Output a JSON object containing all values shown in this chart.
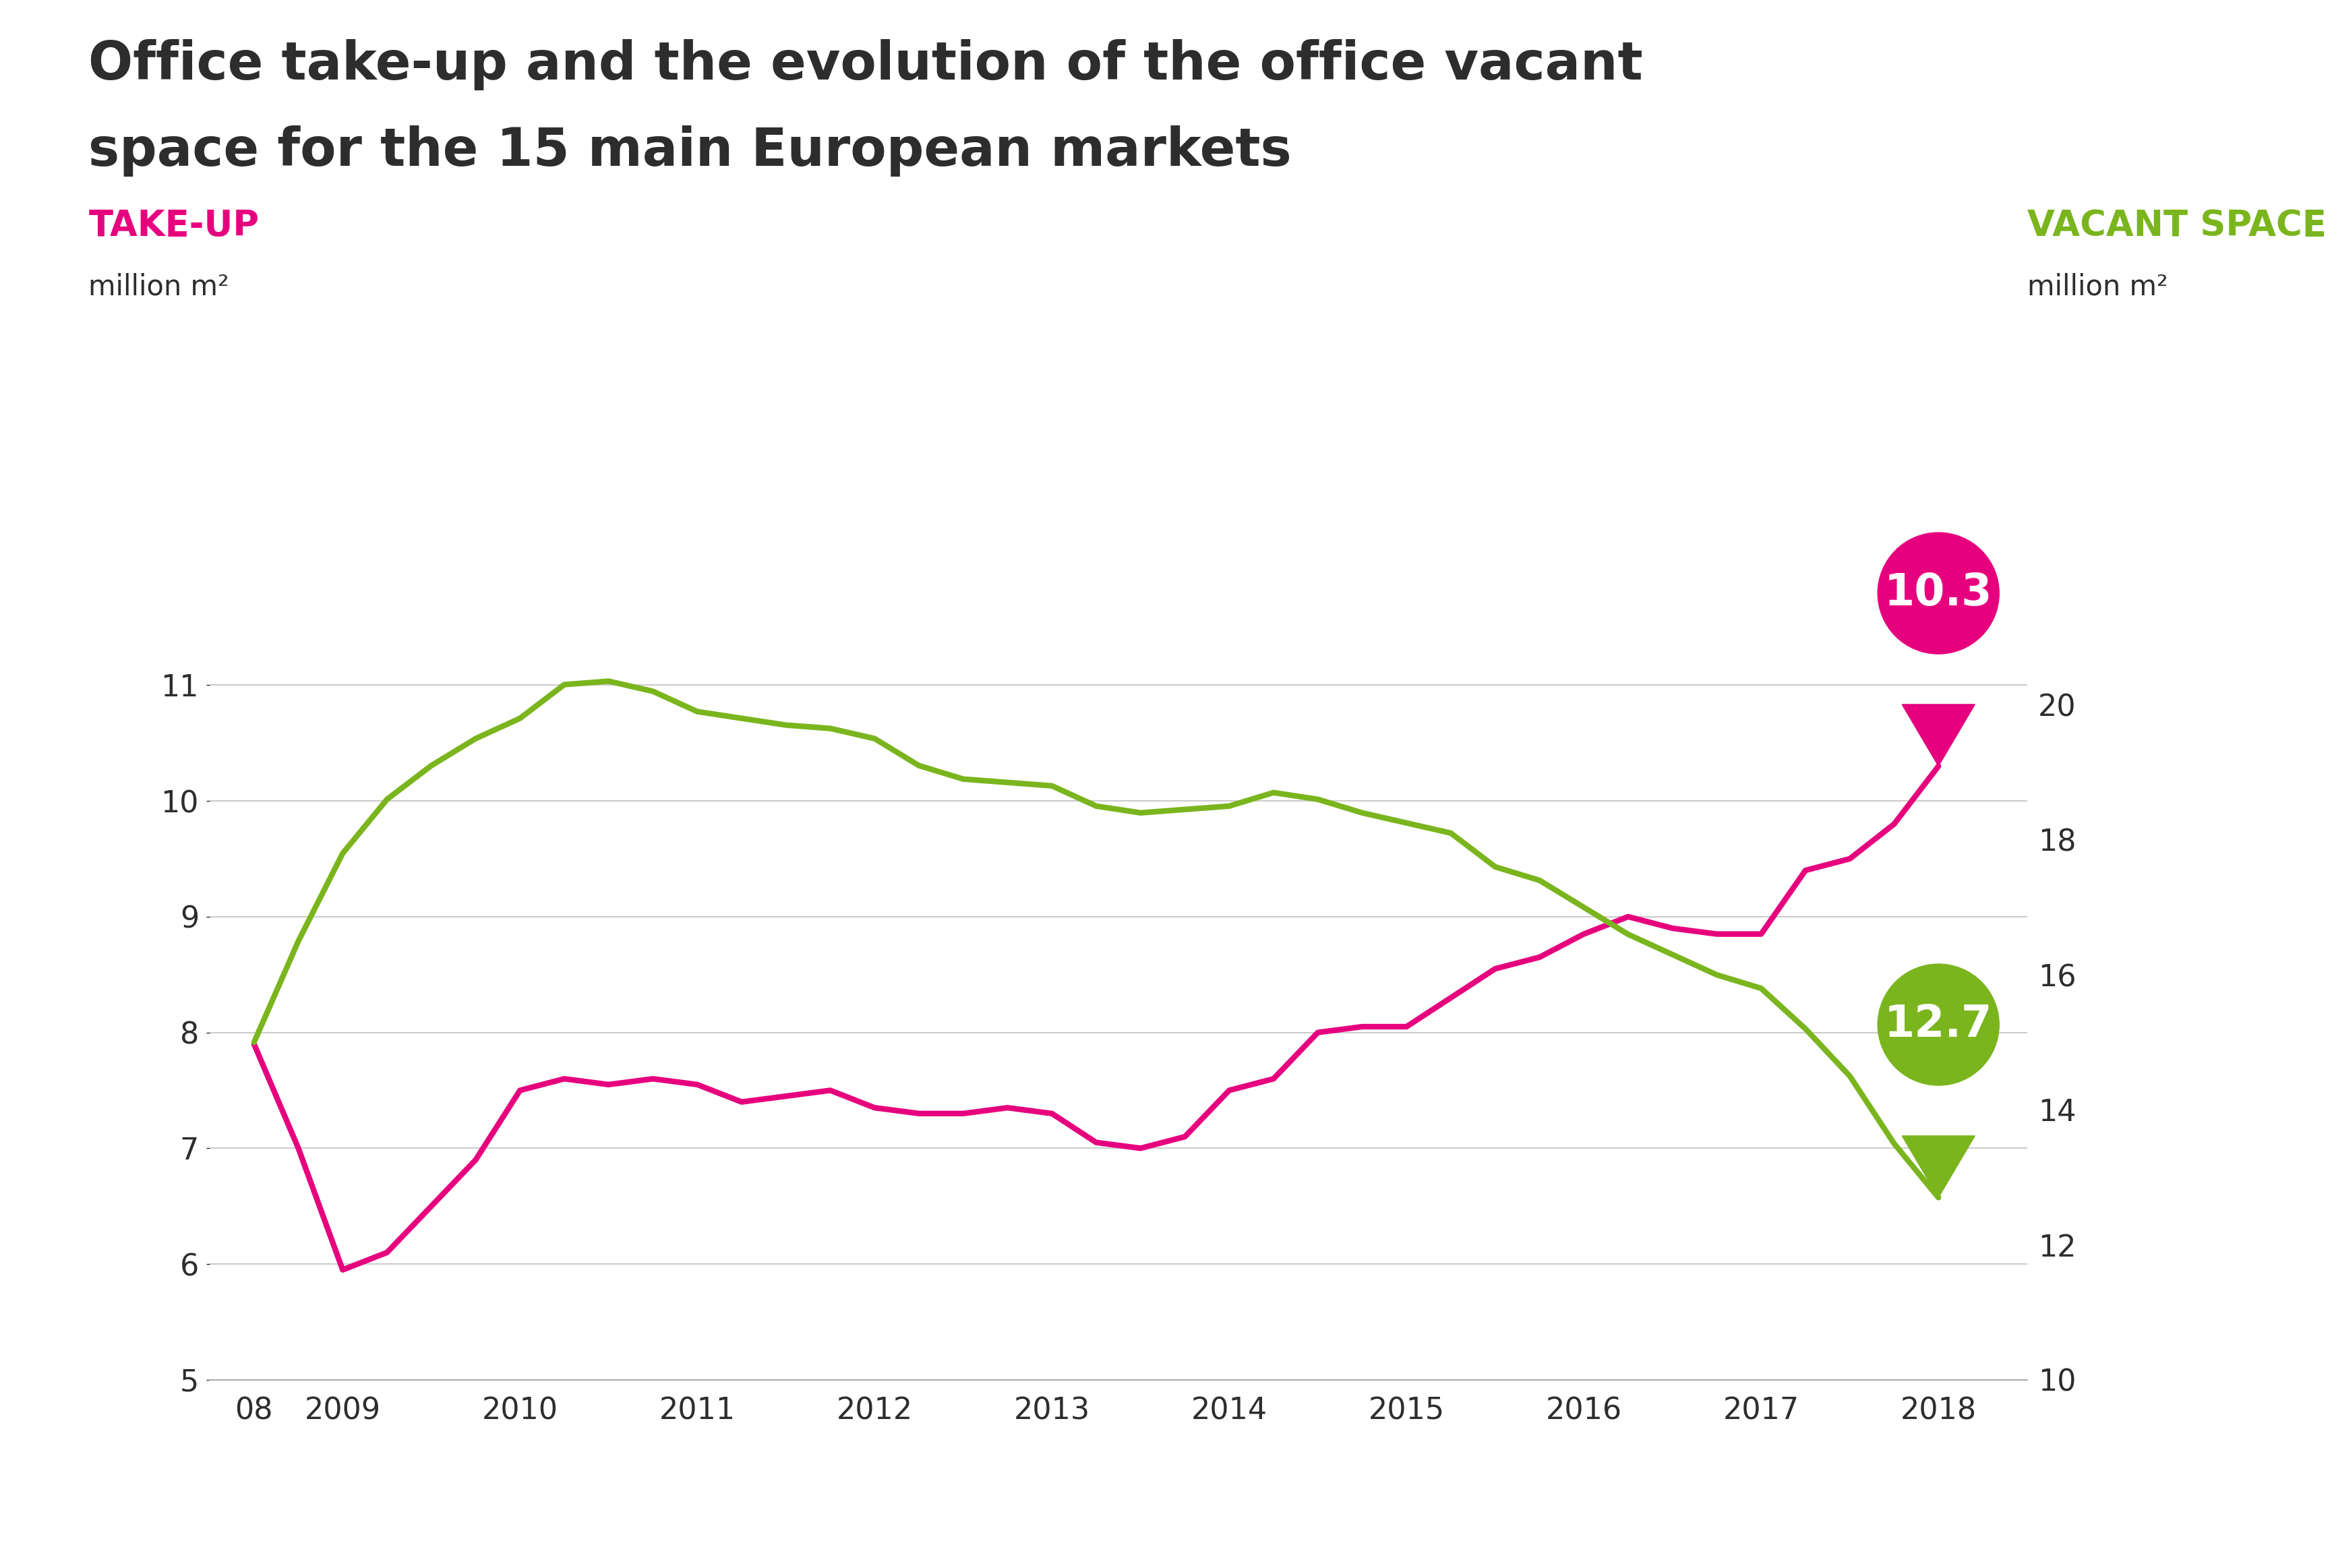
{
  "title_line1": "Office take-up and the evolution of the office vacant",
  "title_line2": "space for the 15 main European markets",
  "left_label": "TAKE-UP",
  "left_unit": "million m²",
  "right_label": "VACANT SPACE",
  "right_unit": "million m²",
  "left_color": "#e6007e",
  "right_color": "#7ab51d",
  "title_color": "#2d2d2d",
  "background_color": "#ffffff",
  "ylim_left": [
    5,
    11.5
  ],
  "ylim_right": [
    10,
    21.15
  ],
  "takeup_value": "10.3",
  "vacant_value": "12.7",
  "takeup_x": [
    2008.5,
    2008.75,
    2009.0,
    2009.25,
    2009.5,
    2009.75,
    2010.0,
    2010.25,
    2010.5,
    2010.75,
    2011.0,
    2011.25,
    2011.5,
    2011.75,
    2012.0,
    2012.25,
    2012.5,
    2012.75,
    2013.0,
    2013.25,
    2013.5,
    2013.75,
    2014.0,
    2014.25,
    2014.5,
    2014.75,
    2015.0,
    2015.25,
    2015.5,
    2015.75,
    2016.0,
    2016.25,
    2016.5,
    2016.75,
    2017.0,
    2017.25,
    2017.5,
    2017.75,
    2018.0
  ],
  "takeup_y": [
    7.9,
    7.0,
    5.95,
    6.1,
    6.5,
    6.9,
    7.5,
    7.6,
    7.55,
    7.6,
    7.55,
    7.4,
    7.45,
    7.5,
    7.35,
    7.3,
    7.3,
    7.35,
    7.3,
    7.05,
    7.0,
    7.1,
    7.5,
    7.6,
    8.0,
    8.05,
    8.05,
    8.3,
    8.55,
    8.65,
    8.85,
    9.0,
    8.9,
    8.85,
    8.85,
    9.4,
    9.5,
    9.8,
    10.3
  ],
  "vacant_x": [
    2008.5,
    2008.75,
    2009.0,
    2009.25,
    2009.5,
    2009.75,
    2010.0,
    2010.25,
    2010.5,
    2010.75,
    2011.0,
    2011.25,
    2011.5,
    2011.75,
    2012.0,
    2012.25,
    2012.5,
    2012.75,
    2013.0,
    2013.25,
    2013.5,
    2013.75,
    2014.0,
    2014.25,
    2014.5,
    2014.75,
    2015.0,
    2015.25,
    2015.5,
    2015.75,
    2016.0,
    2016.25,
    2016.5,
    2016.75,
    2017.0,
    2017.25,
    2017.5,
    2017.75,
    2018.0
  ],
  "vacant_y": [
    15.0,
    16.5,
    17.8,
    18.6,
    19.1,
    19.5,
    19.8,
    20.3,
    20.35,
    20.2,
    19.9,
    19.8,
    19.7,
    19.65,
    19.5,
    19.1,
    18.9,
    18.85,
    18.8,
    18.5,
    18.4,
    18.45,
    18.5,
    18.7,
    18.6,
    18.4,
    18.25,
    18.1,
    17.6,
    17.4,
    17.0,
    16.6,
    16.3,
    16.0,
    15.8,
    15.2,
    14.5,
    13.5,
    12.7
  ],
  "xticks": [
    2008.5,
    2009,
    2010,
    2011,
    2012,
    2013,
    2014,
    2015,
    2016,
    2017,
    2018
  ],
  "xticklabels": [
    "08",
    "2009",
    "2010",
    "2011",
    "2012",
    "2013",
    "2014",
    "2015",
    "2016",
    "2017",
    "2018"
  ],
  "yticks_left": [
    5,
    6,
    7,
    8,
    9,
    10,
    11
  ],
  "yticks_right": [
    10,
    12,
    14,
    16,
    18,
    20
  ],
  "grid_color": "#cccccc",
  "line_width": 6,
  "title_fontsize": 56,
  "label_fontsize": 38,
  "unit_fontsize": 30,
  "tick_fontsize": 32
}
